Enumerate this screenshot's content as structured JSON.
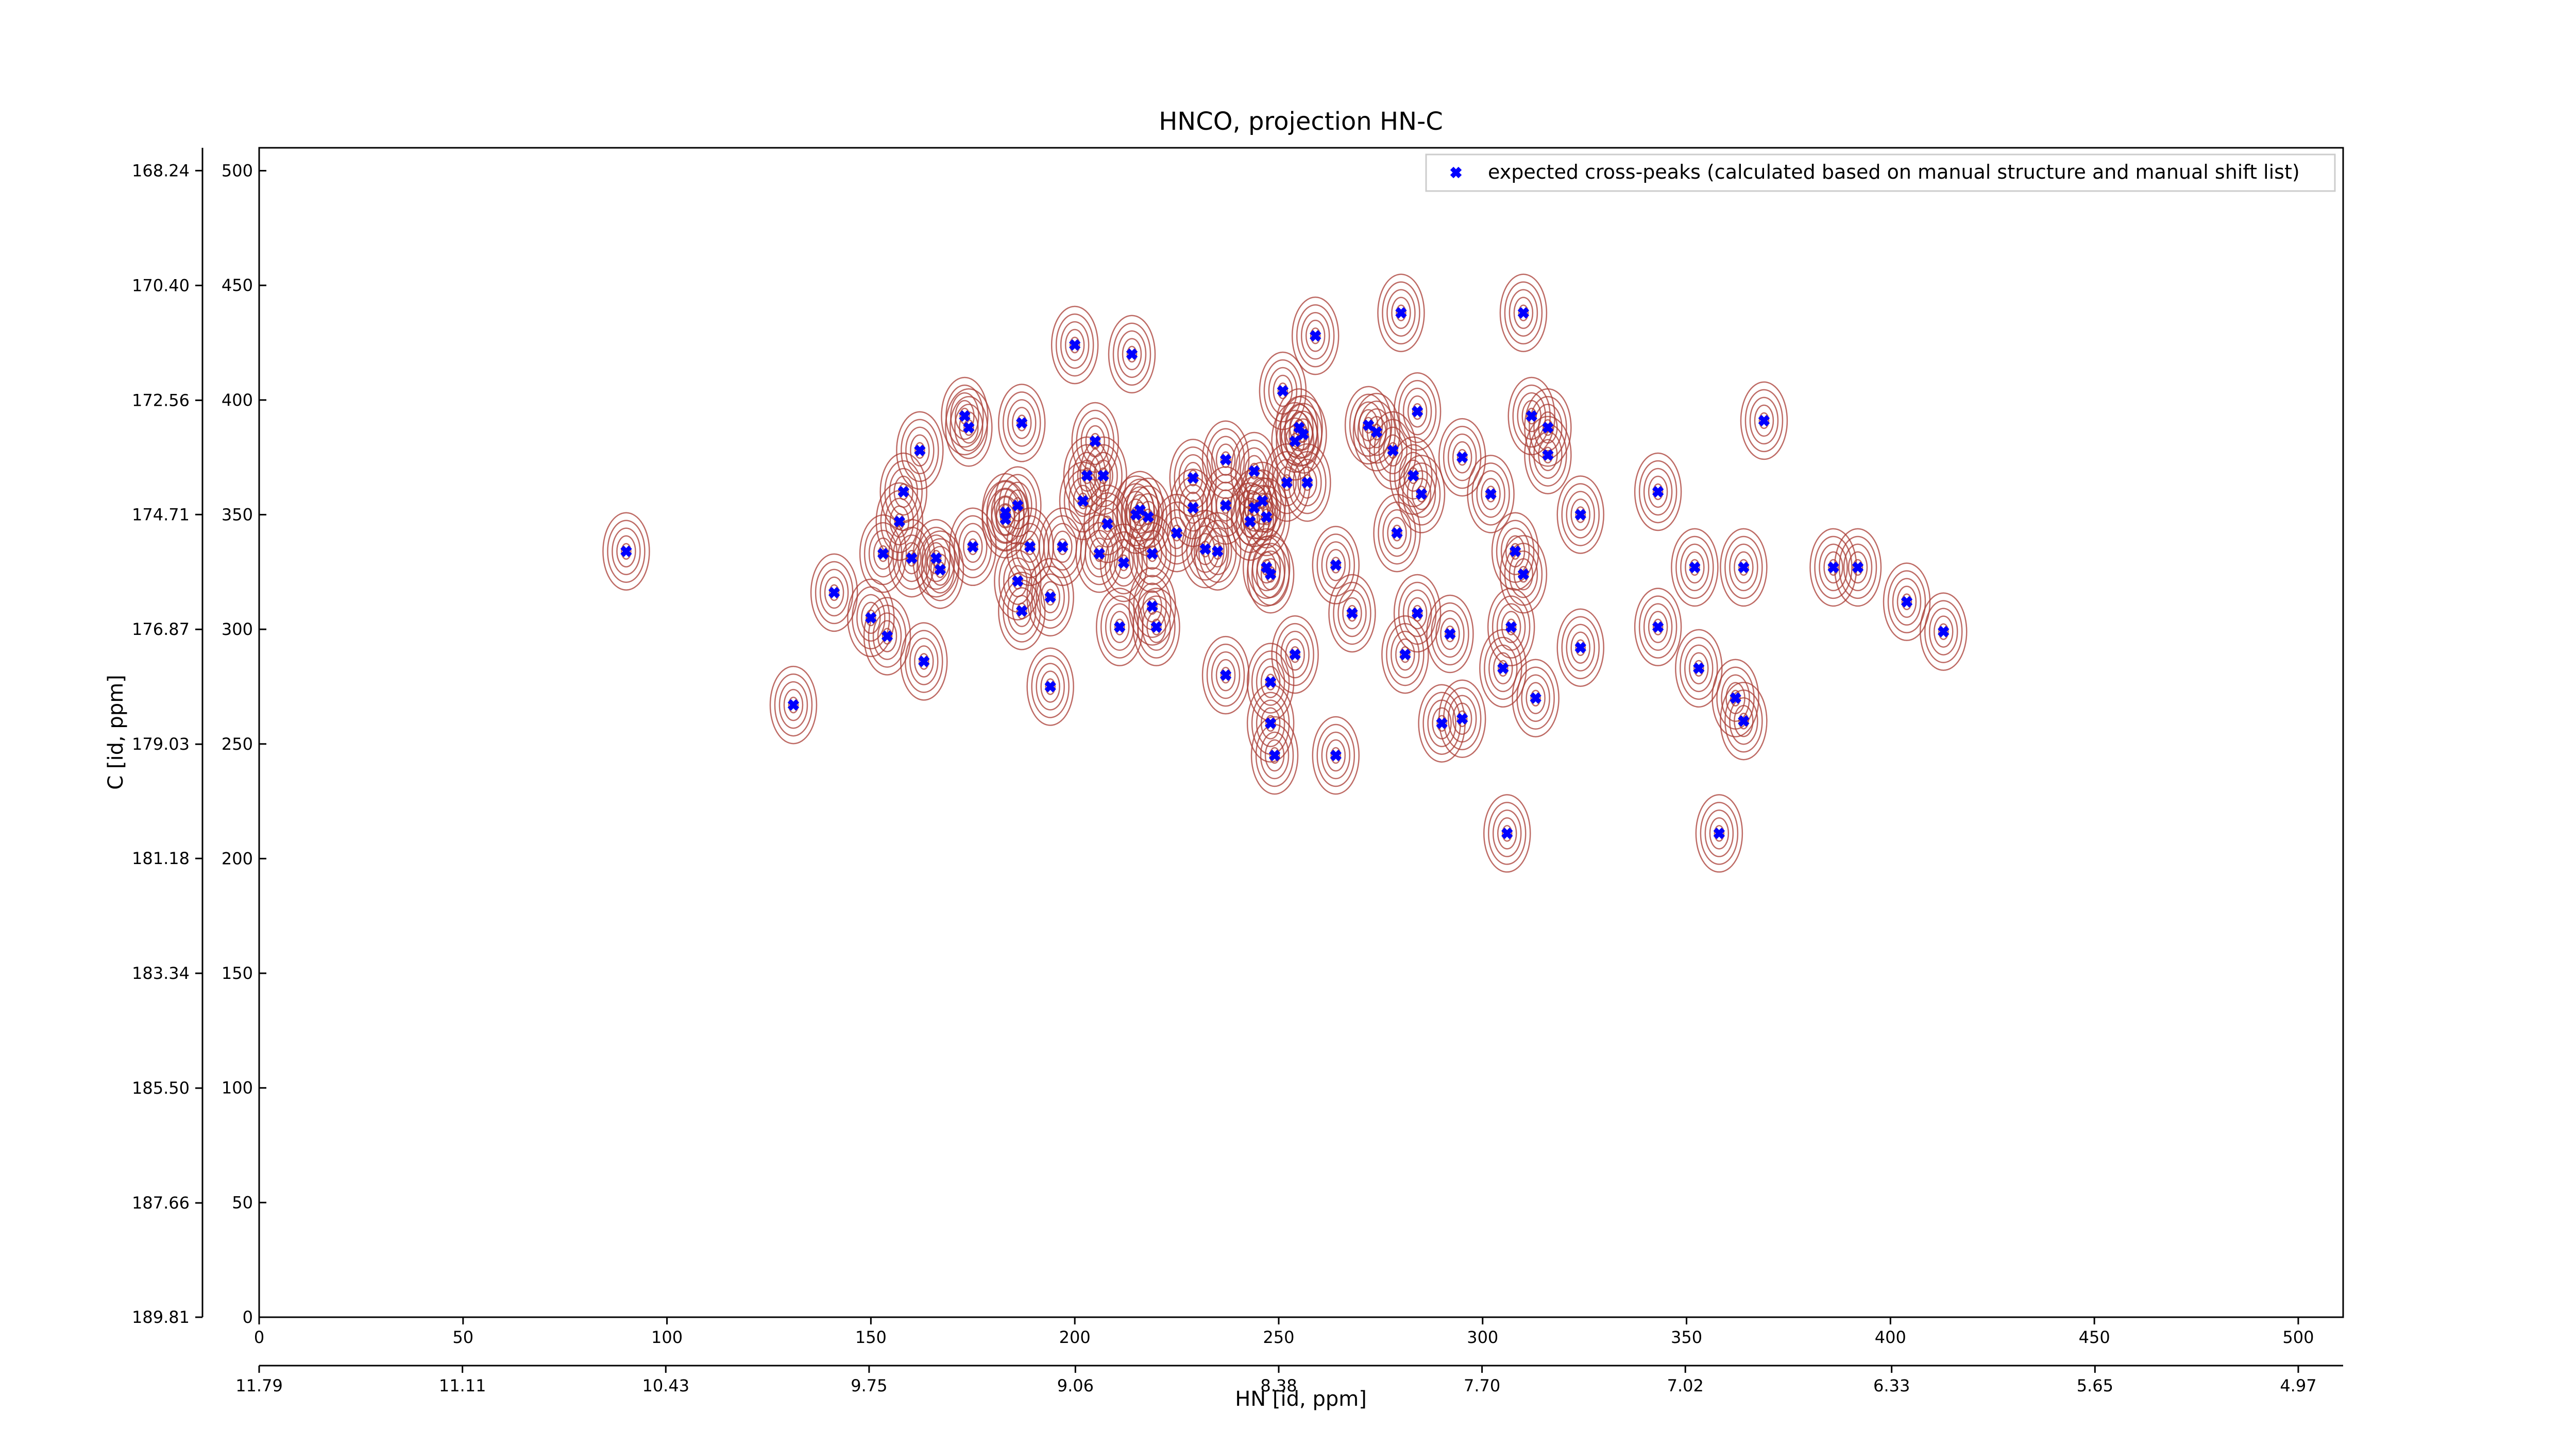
{
  "chart_data": {
    "type": "scatter",
    "title": "HNCO, projection HN-C",
    "x_label": "HN [id, ppm]",
    "y_label": "C [id, ppm]",
    "legend_position": "upper right",
    "series": [
      {
        "name": "expected cross-peaks (calculated based on manual structure and manual shift list)",
        "color": "#0000ff",
        "contour_color": "#a83a32",
        "x": [
          90,
          131,
          141,
          150,
          154,
          153,
          157,
          158,
          162,
          163,
          160,
          167,
          166,
          175,
          173,
          174,
          183,
          183,
          186,
          187,
          187,
          186,
          189,
          194,
          194,
          197,
          200,
          202,
          203,
          205,
          207,
          206,
          208,
          211,
          212,
          214,
          215,
          216,
          218,
          219,
          220,
          219,
          225,
          229,
          229,
          232,
          235,
          237,
          237,
          237,
          243,
          244,
          244,
          246,
          247,
          247,
          248,
          248,
          248,
          249,
          251,
          252,
          254,
          254,
          255,
          256,
          257,
          259,
          264,
          264,
          268,
          272,
          274,
          278,
          279,
          280,
          281,
          283,
          284,
          284,
          285,
          290,
          292,
          295,
          295,
          302,
          305,
          307,
          306,
          308,
          310,
          310,
          312,
          313,
          316,
          316,
          324,
          324,
          343,
          343,
          352,
          353,
          358,
          362,
          364,
          364,
          369,
          386,
          392,
          404,
          413
        ],
        "values": [
          334,
          267,
          316,
          305,
          297,
          333,
          347,
          360,
          378,
          286,
          331,
          326,
          331,
          336,
          393,
          388,
          348,
          351,
          354,
          390,
          308,
          321,
          336,
          314,
          275,
          336,
          424,
          356,
          367,
          382,
          367,
          333,
          346,
          301,
          329,
          420,
          350,
          352,
          349,
          310,
          301,
          333,
          342,
          366,
          353,
          335,
          334,
          374,
          280,
          354,
          347,
          369,
          353,
          356,
          349,
          327,
          324,
          277,
          259,
          245,
          404,
          364,
          382,
          289,
          388,
          385,
          364,
          428,
          245,
          328,
          307,
          389,
          386,
          378,
          342,
          438,
          289,
          367,
          395,
          307,
          359,
          259,
          298,
          261,
          375,
          359,
          283,
          301,
          211,
          334,
          438,
          324,
          393,
          270,
          388,
          376,
          350,
          292,
          301,
          360,
          327,
          283,
          211,
          270,
          260,
          327,
          391,
          327,
          327,
          312,
          299
        ]
      }
    ],
    "xlim": [
      0,
      511
    ],
    "xticks": [
      0,
      50,
      100,
      150,
      200,
      250,
      300,
      350,
      400,
      450,
      500
    ],
    "x2lim": [
      11.79,
      4.82
    ],
    "x2ticks": [
      11.79,
      11.11,
      10.43,
      9.75,
      9.06,
      8.38,
      {
        "value": 7.7,
        "label": "7.70"
      },
      7.02,
      6.33,
      5.65,
      4.97
    ],
    "ylim": [
      0,
      510
    ],
    "yticks": [
      0,
      50,
      100,
      150,
      200,
      250,
      300,
      350,
      400,
      450,
      500
    ],
    "y2lim": [
      189.81,
      167.81
    ],
    "y2ticks": [
      168.24,
      {
        "value": 170.4,
        "label": "170.40"
      },
      172.56,
      174.71,
      176.87,
      179.03,
      181.18,
      183.34,
      {
        "value": 185.5,
        "label": "185.50"
      },
      187.66,
      189.81
    ]
  }
}
